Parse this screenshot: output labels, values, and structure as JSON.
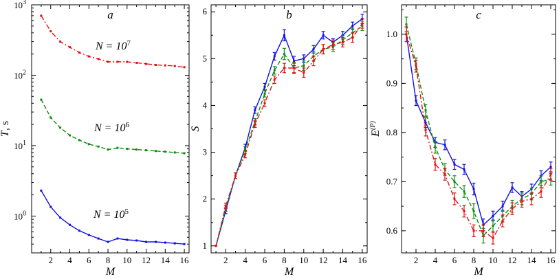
{
  "colors": {
    "blue": "#1010e0",
    "green": "#108a10",
    "red": "#e01010"
  },
  "chart_data": [
    {
      "type": "line",
      "title": "a",
      "xlabel": "M",
      "ylabel": "T, s",
      "yscale": "log",
      "xlim": [
        0,
        16.5
      ],
      "ylim": [
        0.3,
        1000
      ],
      "xticks": [
        2,
        4,
        6,
        8,
        10,
        12,
        14,
        16
      ],
      "xtick_labels": [
        "2",
        "4",
        "6",
        "8",
        "10",
        "12",
        "14",
        "16"
      ],
      "yticks": [
        1,
        10,
        100,
        1000
      ],
      "ytick_labels": [
        {
          "base": "10",
          "exp": "0"
        },
        {
          "base": "10",
          "exp": "1"
        },
        {
          "base": "10",
          "exp": "2"
        },
        {
          "base": "10",
          "exp": "3"
        }
      ],
      "x": [
        1,
        2,
        3,
        4,
        5,
        6,
        7,
        8,
        9,
        10,
        11,
        12,
        13,
        14,
        15,
        16
      ],
      "series": [
        {
          "label": {
            "base": "N = 10",
            "exp": "7"
          },
          "color": "red",
          "dash": "dashdot",
          "values": [
            700,
            420,
            300,
            250,
            210,
            185,
            170,
            155,
            155,
            155,
            150,
            145,
            140,
            138,
            135,
            130
          ]
        },
        {
          "label": {
            "base": "N = 10",
            "exp": "6"
          },
          "color": "green",
          "dash": "dash",
          "values": [
            45,
            25,
            18,
            14,
            12,
            10.5,
            9.7,
            8.8,
            9.3,
            9.0,
            8.8,
            8.6,
            8.4,
            8.2,
            8.0,
            7.8
          ]
        },
        {
          "label": {
            "base": "N = 10",
            "exp": "5"
          },
          "color": "blue",
          "dash": "solid",
          "values": [
            2.3,
            1.35,
            0.95,
            0.75,
            0.62,
            0.54,
            0.48,
            0.43,
            0.48,
            0.46,
            0.45,
            0.43,
            0.43,
            0.42,
            0.41,
            0.4
          ]
        }
      ]
    },
    {
      "type": "line",
      "title": "b",
      "xlabel": "M",
      "ylabel": "S",
      "xlim": [
        0.5,
        16.5
      ],
      "ylim": [
        0.85,
        6.15
      ],
      "xticks": [
        2,
        4,
        6,
        8,
        10,
        12,
        14,
        16
      ],
      "xtick_labels": [
        "2",
        "4",
        "6",
        "8",
        "10",
        "12",
        "14",
        "16"
      ],
      "yticks": [
        1,
        2,
        3,
        4,
        5,
        6
      ],
      "ytick_labels": [
        "1",
        "2",
        "3",
        "4",
        "5",
        "6"
      ],
      "x": [
        1,
        2,
        3,
        4,
        5,
        6,
        7,
        8,
        9,
        10,
        11,
        12,
        13,
        14,
        15,
        16
      ],
      "series": [
        {
          "color": "blue",
          "dash": "solid",
          "values": [
            1.0,
            1.75,
            2.5,
            3.1,
            3.9,
            4.4,
            5.05,
            5.5,
            4.95,
            5.0,
            5.2,
            5.5,
            5.35,
            5.5,
            5.7,
            5.85
          ],
          "errors": [
            0,
            0.06,
            0.06,
            0.07,
            0.07,
            0.07,
            0.08,
            0.12,
            0.1,
            0.08,
            0.08,
            0.08,
            0.08,
            0.08,
            0.08,
            0.1
          ]
        },
        {
          "color": "green",
          "dash": "dash",
          "values": [
            1.0,
            1.8,
            2.5,
            3.05,
            3.65,
            4.25,
            4.75,
            5.1,
            4.8,
            4.85,
            5.05,
            5.2,
            5.25,
            5.4,
            5.55,
            5.7
          ],
          "errors": [
            0,
            0.06,
            0.06,
            0.07,
            0.07,
            0.07,
            0.08,
            0.12,
            0.12,
            0.1,
            0.1,
            0.1,
            0.1,
            0.1,
            0.1,
            0.1
          ]
        },
        {
          "color": "red",
          "dash": "dashdot",
          "values": [
            1.0,
            1.85,
            2.5,
            2.95,
            3.6,
            4.05,
            4.55,
            4.8,
            4.8,
            4.7,
            4.95,
            5.2,
            5.3,
            5.35,
            5.45,
            5.75
          ],
          "errors": [
            0,
            0.06,
            0.06,
            0.07,
            0.07,
            0.07,
            0.08,
            0.1,
            0.1,
            0.1,
            0.1,
            0.1,
            0.1,
            0.1,
            0.1,
            0.1
          ]
        }
      ]
    },
    {
      "type": "line",
      "title": "c",
      "xlabel": "M",
      "ylabel": {
        "base": "E",
        "sup": "(P)"
      },
      "xlim": [
        0.5,
        16.5
      ],
      "ylim": [
        0.555,
        1.06
      ],
      "xticks": [
        2,
        4,
        6,
        8,
        10,
        12,
        14,
        16
      ],
      "xtick_labels": [
        "2",
        "4",
        "6",
        "8",
        "10",
        "12",
        "14",
        "16"
      ],
      "yticks": [
        0.6,
        0.7,
        0.8,
        0.9,
        1.0
      ],
      "ytick_labels": [
        "0.6",
        "0.7",
        "0.8",
        "0.9",
        "1.0"
      ],
      "x": [
        1,
        2,
        3,
        4,
        5,
        6,
        7,
        8,
        9,
        10,
        11,
        12,
        13,
        14,
        15,
        16
      ],
      "series": [
        {
          "color": "blue",
          "dash": "solid",
          "values": [
            1.0,
            0.865,
            0.82,
            0.78,
            0.775,
            0.735,
            0.725,
            0.685,
            0.612,
            0.63,
            0.65,
            0.688,
            0.67,
            0.685,
            0.712,
            0.73
          ],
          "errors": [
            0.015,
            0.01,
            0.01,
            0.01,
            0.01,
            0.01,
            0.01,
            0.012,
            0.012,
            0.01,
            0.01,
            0.01,
            0.01,
            0.01,
            0.01,
            0.01
          ]
        },
        {
          "color": "green",
          "dash": "dash",
          "values": [
            1.02,
            0.94,
            0.845,
            0.77,
            0.725,
            0.7,
            0.68,
            0.64,
            0.59,
            0.61,
            0.63,
            0.65,
            0.665,
            0.675,
            0.7,
            0.705
          ],
          "errors": [
            0.015,
            0.012,
            0.012,
            0.012,
            0.012,
            0.012,
            0.012,
            0.015,
            0.015,
            0.012,
            0.012,
            0.012,
            0.012,
            0.012,
            0.012,
            0.012
          ]
        },
        {
          "color": "red",
          "dash": "dashdot",
          "values": [
            1.0,
            0.935,
            0.805,
            0.735,
            0.715,
            0.665,
            0.64,
            0.6,
            0.6,
            0.585,
            0.62,
            0.645,
            0.66,
            0.665,
            0.68,
            0.715
          ],
          "errors": [
            0.015,
            0.012,
            0.012,
            0.012,
            0.012,
            0.012,
            0.012,
            0.012,
            0.012,
            0.012,
            0.012,
            0.012,
            0.012,
            0.012,
            0.012,
            0.012
          ]
        }
      ]
    }
  ]
}
